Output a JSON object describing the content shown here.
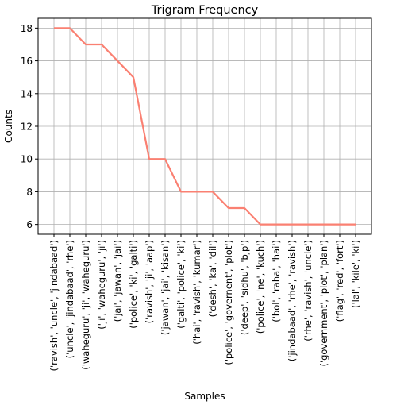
{
  "chart_data": {
    "type": "line",
    "title": "Trigram Frequency",
    "xlabel": "Samples",
    "ylabel": "Counts",
    "categories": [
      "('ravish', 'uncle', 'jindabaad')",
      "('uncle', 'jindabaad', 'rhe')",
      "('waheguru', 'ji', 'waheguru')",
      "('ji', 'waheguru', 'ji')",
      "('jai', 'jawan', 'jai')",
      "('police', 'ki', 'galti')",
      "('ravish', 'ji', 'aap')",
      "('jawan', 'jai', 'kisan')",
      "('galti', 'police', 'ki')",
      "('hai', 'ravish', 'kumar')",
      "('desh', 'ka', 'dil')",
      "('police', 'governent', 'plot')",
      "('deep', 'sidhu', 'bjp')",
      "('police', 'ne', 'kuch')",
      "('bol', 'raha', 'hai')",
      "('jindabaad', 'rhe', 'ravish')",
      "('rhe', 'ravish', 'uncle')",
      "('government', 'plot', 'plan')",
      "('flag', 'red', 'fort')",
      "('lal', 'kile', 'ki')"
    ],
    "series": [
      {
        "values": [
          18,
          18,
          17,
          17,
          16,
          15,
          10,
          10,
          8,
          8,
          8,
          7,
          7,
          6,
          6,
          6,
          6,
          6,
          6,
          6
        ]
      }
    ],
    "yticks": [
      6,
      8,
      10,
      12,
      14,
      16,
      18
    ],
    "ylim": [
      5.4,
      18.6
    ],
    "grid": true,
    "line_color": "#fa8072"
  }
}
